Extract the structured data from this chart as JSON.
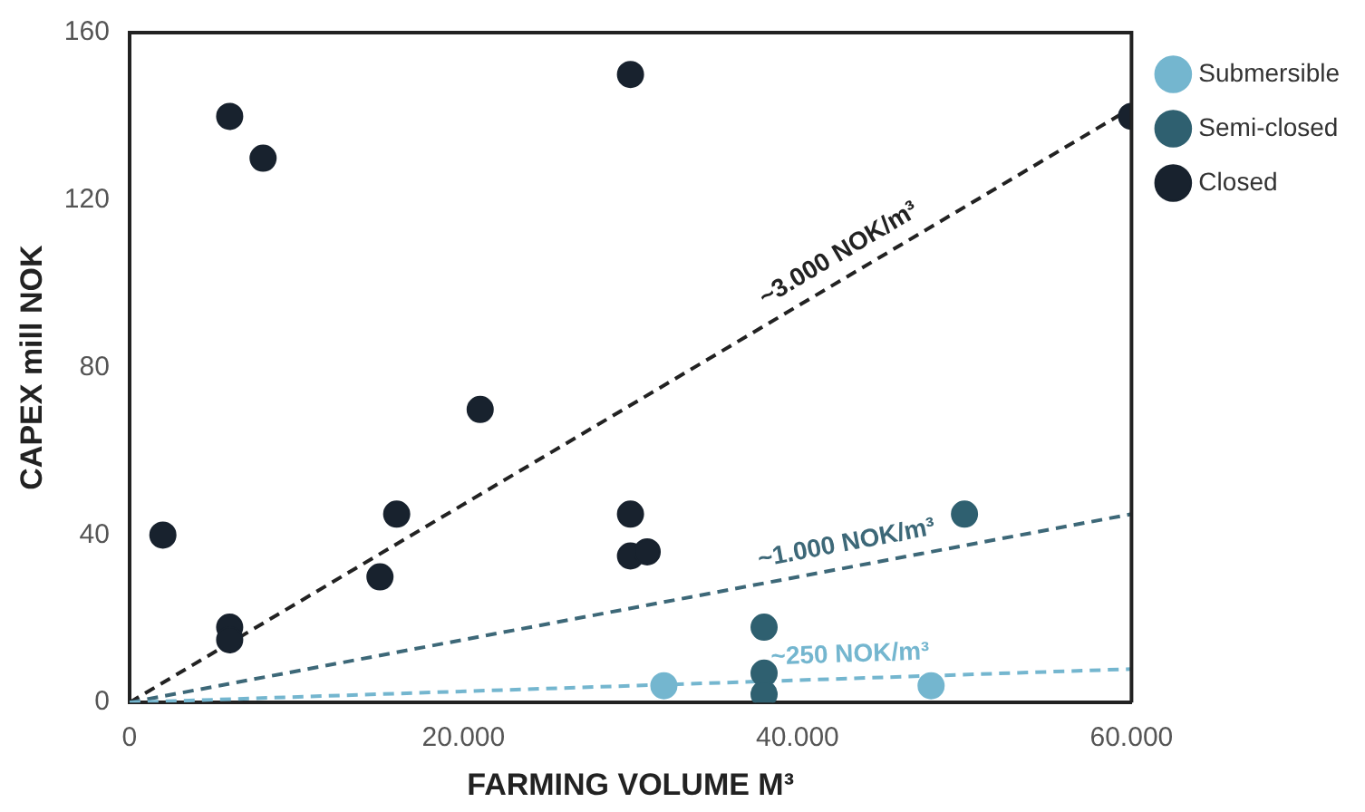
{
  "chart_data": {
    "type": "scatter",
    "xlabel": "FARMING VOLUME M³",
    "ylabel": "CAPEX mill NOK",
    "xlim": [
      0,
      60000
    ],
    "xticks": [
      0,
      {
        "value": 20000,
        "label": "20.000"
      },
      {
        "value": 40000,
        "label": "40.000"
      },
      {
        "value": 60000,
        "label": "60.000"
      }
    ],
    "ylim": [
      0,
      160
    ],
    "yticks": [
      0,
      40,
      80,
      120,
      160
    ],
    "grid": false,
    "legend": "right",
    "marker": "circle",
    "series": [
      {
        "name": "Submersible",
        "color": "#74b6cf",
        "x": [
          32000,
          48000
        ],
        "values": [
          4,
          4
        ]
      },
      {
        "name": "Semi-closed",
        "color": "#2f6070",
        "x": [
          38000,
          38000,
          38000,
          50000
        ],
        "values": [
          18,
          7,
          2,
          45
        ]
      },
      {
        "name": "Closed",
        "color": "#18222e",
        "x": [
          2000,
          6000,
          8000,
          6000,
          6000,
          15000,
          16000,
          21000,
          30000,
          30000,
          30000,
          31000,
          60000
        ],
        "values": [
          40,
          140,
          130,
          18,
          15,
          30,
          45,
          70,
          150,
          45,
          35,
          36,
          140
        ]
      },
      {
        "type": "line",
        "name": "~250 NOK/m³",
        "color": "#74b6cf",
        "line_style": "dashed",
        "marker": "none",
        "x": [
          0,
          60000
        ],
        "values": [
          0,
          8
        ]
      },
      {
        "type": "line",
        "name": "~1.000 NOK/m³",
        "color": "#3d6878",
        "line_style": "dashed",
        "marker": "none",
        "x": [
          0,
          60000
        ],
        "values": [
          0,
          45
        ]
      },
      {
        "type": "line",
        "name": "~3.000 NOK/m³",
        "color": "#222222",
        "line_style": "dashed",
        "marker": "none",
        "x": [
          0,
          60000
        ],
        "values": [
          0,
          142
        ]
      }
    ]
  }
}
